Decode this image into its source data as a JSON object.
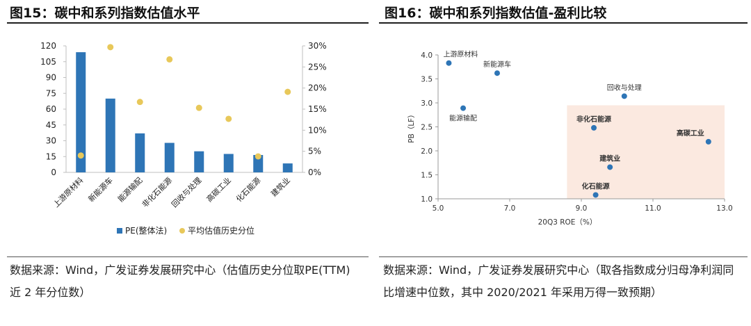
{
  "left": {
    "title": "图15：碳中和系列指数估值水平",
    "source": "数据来源：Wind，广发证券发展研究中心（估值历史分位取PE(TTM) 近 2 年分位数）",
    "chart_data": {
      "type": "bar",
      "categories": [
        "上游原材料",
        "新能源车",
        "能源输配",
        "非化石能源",
        "回收与处理",
        "高碳工业",
        "化石能源",
        "建筑业"
      ],
      "series": [
        {
          "name": "PE(整体法)",
          "type": "bar",
          "axis": "left",
          "color": "#2e75b6",
          "values": [
            114,
            70,
            37,
            28,
            20,
            17.5,
            16.5,
            8.5
          ]
        },
        {
          "name": "平均估值历史分位",
          "type": "scatter",
          "axis": "right",
          "color": "#e8c85a",
          "values": [
            0.04,
            0.297,
            0.167,
            0.268,
            0.153,
            0.127,
            0.038,
            0.191
          ]
        }
      ],
      "left_axis": {
        "min": 0,
        "max": 120,
        "ticks": [
          "0",
          "15",
          "30",
          "45",
          "60",
          "75",
          "90",
          "105",
          "120"
        ]
      },
      "right_axis": {
        "min": 0,
        "max": 0.3,
        "ticks": [
          "0%",
          "5%",
          "10%",
          "15%",
          "20%",
          "25%",
          "30%"
        ]
      },
      "legend": "bottom"
    }
  },
  "right": {
    "title": "图16：碳中和系列指数估值-盈利比较",
    "source": "数据来源：Wind，广发证券发展研究中心（取各指数成分归母净利润同比增速中位数，其中 2020/2021 年采用万得一致预期）",
    "chart_data": {
      "type": "scatter",
      "xlabel": "20Q3 ROE（%）",
      "ylabel": "PB（LF）",
      "xlim": [
        5.0,
        13.0
      ],
      "ylim": [
        1.0,
        4.0
      ],
      "xticks": [
        "5.0",
        "7.0",
        "9.0",
        "11.0",
        "13.0"
      ],
      "yticks": [
        "1.0",
        "1.5",
        "2.0",
        "2.5",
        "3.0",
        "3.5",
        "4.0"
      ],
      "point_color": "#2e75b6",
      "highlight_color": "#fbe9e0",
      "highlight_region": {
        "x": [
          8.6,
          13.0
        ],
        "y": [
          1.0,
          2.95
        ]
      },
      "points": [
        {
          "label": "上游原材料",
          "x": 5.3,
          "y": 3.83,
          "label_pos": "above",
          "bold": false
        },
        {
          "label": "新能源车",
          "x": 6.65,
          "y": 3.62,
          "label_pos": "above",
          "bold": false
        },
        {
          "label": "能源输配",
          "x": 5.7,
          "y": 2.89,
          "label_pos": "below",
          "bold": false
        },
        {
          "label": "回收与处理",
          "x": 10.2,
          "y": 3.14,
          "label_pos": "above",
          "bold": false
        },
        {
          "label": "非化石能源",
          "x": 9.35,
          "y": 2.48,
          "label_pos": "above",
          "bold": true
        },
        {
          "label": "高碳工业",
          "x": 12.55,
          "y": 2.19,
          "label_pos": "above-left",
          "bold": true
        },
        {
          "label": "建筑业",
          "x": 9.8,
          "y": 1.66,
          "label_pos": "above",
          "bold": true
        },
        {
          "label": "化石能源",
          "x": 9.4,
          "y": 1.08,
          "label_pos": "above",
          "bold": true
        }
      ]
    }
  }
}
